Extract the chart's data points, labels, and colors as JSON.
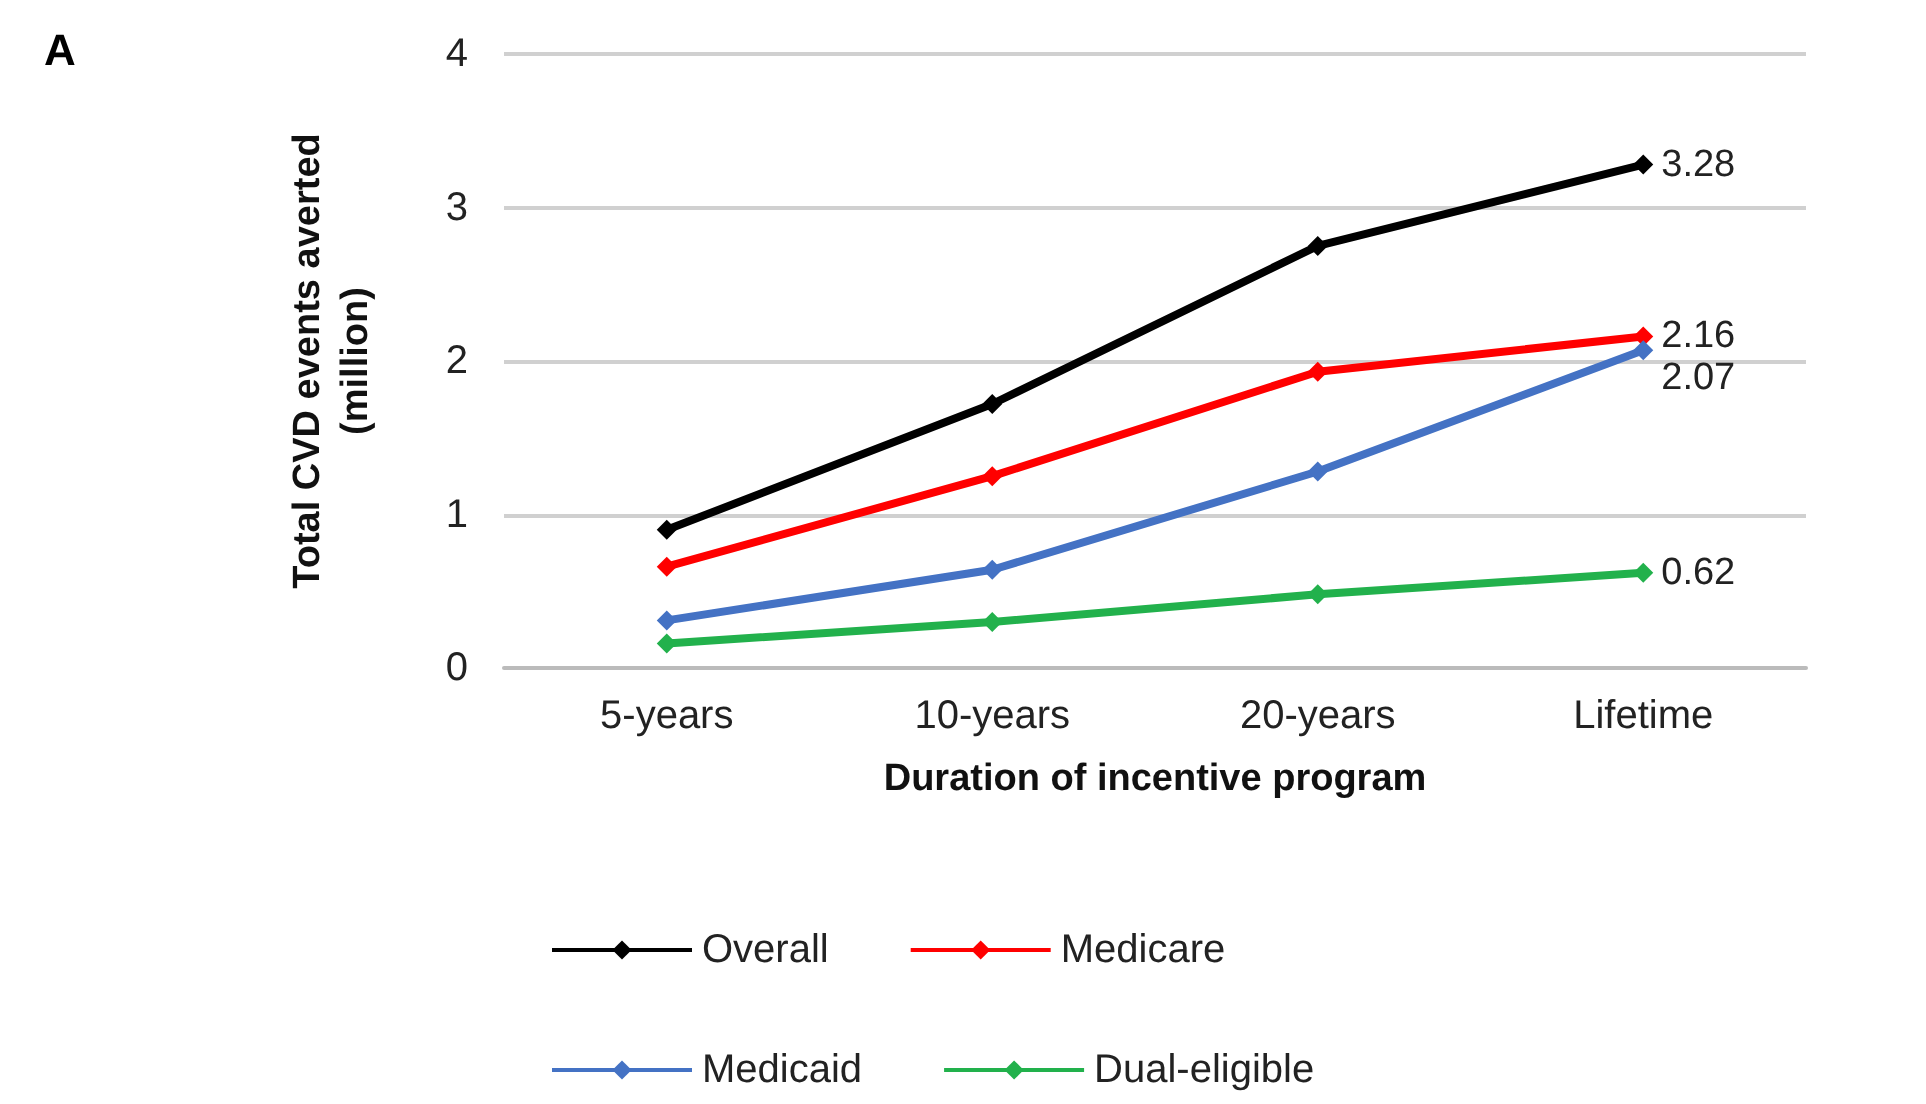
{
  "chart_data": {
    "type": "line",
    "xlabel": "Duration of incentive program",
    "ylabel": "Total CVD events averted\n(million)",
    "annotations": [
      "A"
    ],
    "categories": [
      "5-years",
      "10-years",
      "20-years",
      "Lifetime"
    ],
    "series": [
      {
        "name": "Overall",
        "color": "#000000",
        "values": [
          0.9,
          1.72,
          2.75,
          3.28
        ],
        "value_labels": [
          null,
          null,
          null,
          "3.28"
        ]
      },
      {
        "name": "Medicare",
        "color": "#ff0000",
        "values": [
          0.66,
          1.25,
          1.93,
          2.16
        ],
        "value_labels": [
          null,
          null,
          null,
          "2.16"
        ]
      },
      {
        "name": "Medicaid",
        "color": "#4472c4",
        "values": [
          0.31,
          0.64,
          1.28,
          2.07
        ],
        "value_labels": [
          null,
          null,
          null,
          "2.07"
        ]
      },
      {
        "name": "Dual-eligible",
        "color": "#22b14c",
        "values": [
          0.16,
          0.3,
          0.48,
          0.62
        ],
        "value_labels": [
          null,
          null,
          null,
          "0.62"
        ]
      }
    ],
    "ylim": [
      0,
      4
    ],
    "yticks": [
      0,
      1,
      2,
      3,
      4
    ],
    "grid": "y",
    "legend": "bottom",
    "marker": "diamond",
    "line_style": "solid"
  }
}
